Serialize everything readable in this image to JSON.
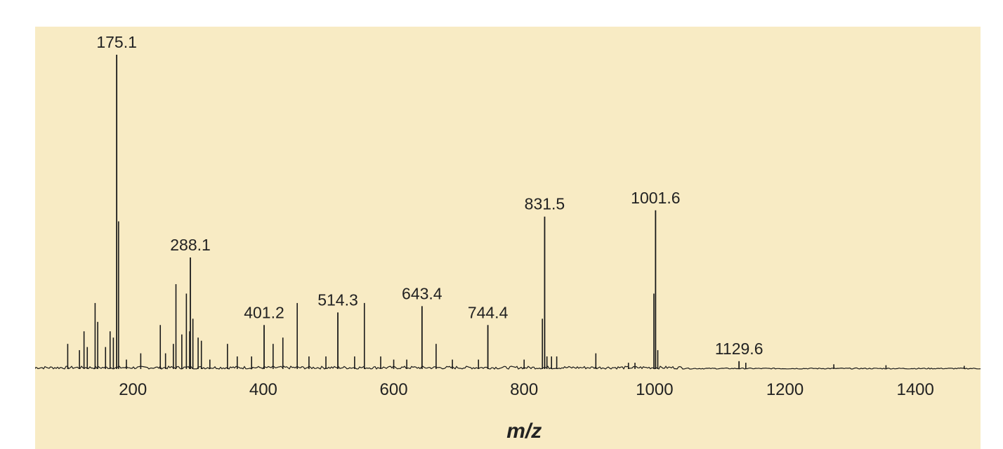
{
  "chart_data": {
    "type": "spectrum",
    "xlabel": "m/z",
    "ylabel": "",
    "title": "",
    "xlim": [
      50,
      1500
    ],
    "ylim": [
      0,
      100
    ],
    "xticks": [
      200,
      400,
      600,
      800,
      1000,
      1200,
      1400
    ],
    "grid": false,
    "legend": "none",
    "colors": {
      "background": "#f8ebc4",
      "line": "#1a1a1a",
      "text": "#222222"
    },
    "labeled_peaks": [
      {
        "label": "175.1",
        "x": 175.1,
        "y": 100
      },
      {
        "label": "288.1",
        "x": 288.1,
        "y": 35.5
      },
      {
        "label": "401.2",
        "x": 401.2,
        "y": 14
      },
      {
        "label": "514.3",
        "x": 514.3,
        "y": 18
      },
      {
        "label": "643.4",
        "x": 643.4,
        "y": 20
      },
      {
        "label": "744.4",
        "x": 744.4,
        "y": 14
      },
      {
        "label": "831.5",
        "x": 831.5,
        "y": 48.5
      },
      {
        "label": "1001.6",
        "x": 1001.6,
        "y": 50.5
      },
      {
        "label": "1129.6",
        "x": 1129.6,
        "y": 2.5
      }
    ],
    "peaks": [
      [
        100,
        8
      ],
      [
        118,
        6
      ],
      [
        125,
        12
      ],
      [
        130,
        7
      ],
      [
        142,
        21
      ],
      [
        146,
        15
      ],
      [
        158,
        7
      ],
      [
        165,
        12
      ],
      [
        170,
        10
      ],
      [
        178,
        47
      ],
      [
        190,
        3
      ],
      [
        212,
        5
      ],
      [
        242,
        14
      ],
      [
        250,
        5
      ],
      [
        262,
        8
      ],
      [
        266,
        27
      ],
      [
        275,
        11
      ],
      [
        282,
        24
      ],
      [
        287,
        12
      ],
      [
        292,
        16
      ],
      [
        300,
        10
      ],
      [
        305,
        9
      ],
      [
        318,
        3
      ],
      [
        345,
        8
      ],
      [
        360,
        4
      ],
      [
        382,
        4
      ],
      [
        415,
        8
      ],
      [
        430,
        10
      ],
      [
        452,
        21
      ],
      [
        470,
        4
      ],
      [
        496,
        4
      ],
      [
        540,
        4
      ],
      [
        555,
        21
      ],
      [
        580,
        4
      ],
      [
        600,
        3
      ],
      [
        620,
        3
      ],
      [
        665,
        8
      ],
      [
        690,
        3
      ],
      [
        730,
        3
      ],
      [
        800,
        3
      ],
      [
        828,
        16
      ],
      [
        835,
        4
      ],
      [
        842,
        4
      ],
      [
        850,
        4
      ],
      [
        910,
        5
      ],
      [
        960,
        2
      ],
      [
        970,
        2
      ],
      [
        999,
        24
      ],
      [
        1005,
        6
      ],
      [
        1140,
        2
      ],
      [
        1275,
        1.5
      ],
      [
        1355,
        1.2
      ],
      [
        1475,
        1
      ]
    ]
  }
}
